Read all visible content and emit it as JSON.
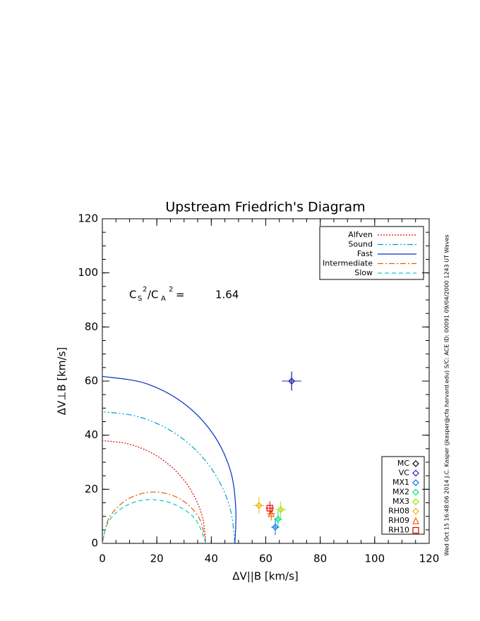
{
  "chart_data": {
    "type": "line",
    "title": "Upstream Friedrich's Diagram",
    "xlabel": "ΔV||B [km/s]",
    "ylabel": "ΔV⊥B [km/s]",
    "xlim": [
      0,
      120
    ],
    "ylim": [
      0,
      120
    ],
    "xticks": [
      0,
      20,
      40,
      60,
      80,
      100,
      120
    ],
    "yticks": [
      0,
      20,
      40,
      60,
      80,
      100,
      120
    ],
    "minor_tick_step": 5,
    "legend": "top-right",
    "series": [
      {
        "name": "Alfven",
        "color": "#e00000",
        "dash": "2,2",
        "x": [
          38,
          36.71,
          32.91,
          26.87,
          19,
          9.84,
          0
        ],
        "y": [
          0,
          9.84,
          19,
          26.87,
          32.91,
          36.71,
          38
        ]
      },
      {
        "name": "Sound",
        "color": "#00a0d0",
        "dash": "8,3,2,3,2,3",
        "x": [
          48.66,
          47.0,
          42.14,
          34.41,
          24.33,
          12.59,
          0
        ],
        "y": [
          0,
          12.59,
          24.33,
          34.41,
          42.14,
          47.0,
          48.66
        ]
      },
      {
        "name": "Fast",
        "color": "#0030c0",
        "dash": "none",
        "x": [
          48.66,
          48.98,
          46.96,
          40.57,
          29.89,
          15.85,
          0
        ],
        "y": [
          0,
          13.12,
          27.11,
          40.57,
          51.76,
          59.15,
          61.74
        ]
      },
      {
        "name": "Intermediate",
        "color": "#e06000",
        "dash": "8,3,2,3",
        "x": [
          38,
          35.45,
          28.5,
          19,
          9.5,
          2.55,
          0
        ],
        "y": [
          0,
          9.5,
          16.45,
          19,
          16.45,
          9.5,
          0
        ]
      },
      {
        "name": "Slow",
        "color": "#00d0c0",
        "dash": "6,4",
        "x": [
          38,
          34.02,
          25.58,
          16.11,
          7.74,
          2.02,
          0
        ],
        "y": [
          0,
          9.12,
          14.77,
          16.11,
          13.4,
          7.54,
          0
        ]
      }
    ],
    "points": {
      "type": "scatter",
      "legend": "bottom-right",
      "series": [
        {
          "name": "MC",
          "color": "#000000",
          "marker": "diamond",
          "x": 69.5,
          "y": 60,
          "xerr": 3.5,
          "yerr": 3.5
        },
        {
          "name": "VC",
          "color": "#2020c0",
          "marker": "diamond",
          "x": 69.5,
          "y": 60,
          "xerr": 3.5,
          "yerr": 3.5
        },
        {
          "name": "MX1",
          "color": "#0070e0",
          "marker": "diamond",
          "x": 63.5,
          "y": 6,
          "xerr": 1.5,
          "yerr": 3
        },
        {
          "name": "MX2",
          "color": "#00e080",
          "marker": "diamond",
          "x": 64.5,
          "y": 9,
          "xerr": 1.5,
          "yerr": 3
        },
        {
          "name": "MX3",
          "color": "#a0e000",
          "marker": "diamond",
          "x": 65.5,
          "y": 12.5,
          "xerr": 2,
          "yerr": 3
        },
        {
          "name": "RH08",
          "color": "#f0b000",
          "marker": "diamond",
          "x": 57.5,
          "y": 14,
          "xerr": 2,
          "yerr": 3
        },
        {
          "name": "RH09",
          "color": "#f06000",
          "marker": "triangle",
          "x": 62,
          "y": 11,
          "xerr": 1.5,
          "yerr": 2.5
        },
        {
          "name": "RH10",
          "color": "#e00000",
          "marker": "square",
          "x": 61.5,
          "y": 13,
          "xerr": 1.5,
          "yerr": 2.5
        }
      ]
    },
    "annotation": {
      "parts": [
        "C",
        "S",
        "2",
        "/C",
        "A",
        "2",
        " ="
      ],
      "value": 1.64
    },
    "footer": "Wed Oct 15 16:48:06 2014   J.C. Kasper (jkasper@cfa.harvard.edu)   S/C: ACE ID: 00091 09/04/2000   1243 UT Waves"
  }
}
